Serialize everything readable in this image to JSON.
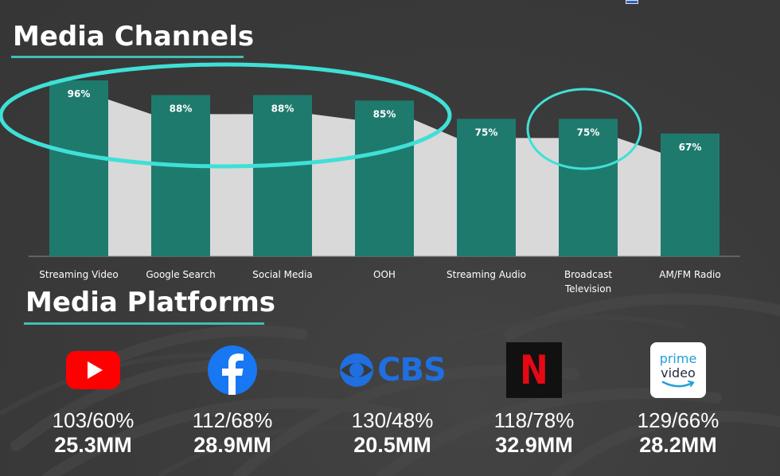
{
  "sections": {
    "channels_title": "Media Channels",
    "platforms_title": "Media Platforms"
  },
  "colors": {
    "bar": "#1f7a6e",
    "trend_band": "#d9d9d9",
    "highlight": "#3fe0d6",
    "underline": "#3fbfb5",
    "youtube": "#ff0000",
    "facebook": "#1877f2",
    "cbs": "#1f6fe0",
    "netflix_bg": "#111111",
    "netflix_n": "#e50914",
    "prime_bg": "#ffffff",
    "prime_text": "#232f3e",
    "prime_smile": "#1fa0d8"
  },
  "chart_data": {
    "type": "bar",
    "categories": [
      "Streaming Video",
      "Google Search",
      "Social Media",
      "OOH",
      "Streaming Audio",
      "Broadcast Television",
      "AM/FM Radio"
    ],
    "category_lines": [
      [
        "Streaming Video"
      ],
      [
        "Google Search"
      ],
      [
        "Social Media"
      ],
      [
        "OOH"
      ],
      [
        "Streaming Audio"
      ],
      [
        "Broadcast",
        "Television"
      ],
      [
        "AM/FM Radio"
      ]
    ],
    "values": [
      96,
      88,
      88,
      85,
      75,
      75,
      67
    ],
    "value_labels": [
      "96%",
      "88%",
      "88%",
      "85%",
      "75%",
      "75%",
      "67%"
    ],
    "title": "Media Channels",
    "xlabel": "",
    "ylabel": "",
    "ylim": [
      0,
      100
    ],
    "grid": false,
    "legend": "none",
    "annotations": [
      {
        "type": "ellipse",
        "covers": [
          "Streaming Video",
          "Google Search",
          "Social Media",
          "OOH"
        ]
      },
      {
        "type": "ellipse",
        "covers": [
          "Broadcast Television"
        ]
      }
    ]
  },
  "platforms": [
    {
      "name": "YouTube",
      "icon": "youtube-icon",
      "ratio": "103/60%",
      "reach": "25.3MM"
    },
    {
      "name": "Facebook",
      "icon": "facebook-icon",
      "ratio": "112/68%",
      "reach": "28.9MM"
    },
    {
      "name": "CBS",
      "icon": "cbs-icon",
      "logo_text": "CBS",
      "ratio": "130/48%",
      "reach": "20.5MM"
    },
    {
      "name": "Netflix",
      "icon": "netflix-icon",
      "logo_text": "N",
      "ratio": "118/78%",
      "reach": "32.9MM"
    },
    {
      "name": "Prime Video",
      "icon": "prime-video-icon",
      "logo_line1": "prime",
      "logo_line2": "video",
      "ratio": "129/66%",
      "reach": "28.2MM"
    }
  ]
}
